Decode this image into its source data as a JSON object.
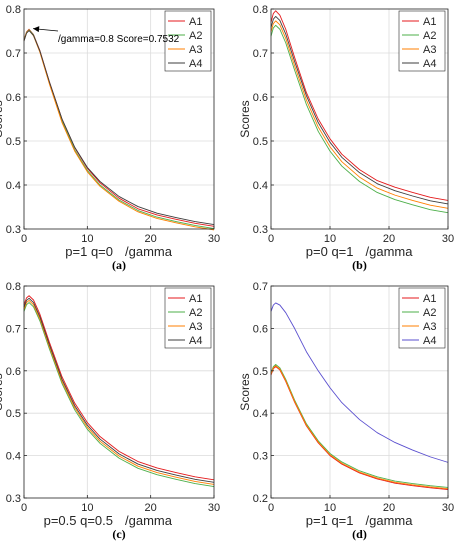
{
  "chart_data": [
    {
      "id": "a",
      "type": "line",
      "panel_label": "(a)",
      "ylabel": "Scores",
      "xlabel_left": "p=1 q=0",
      "xlabel_right": "/gamma",
      "xlim": [
        0,
        30
      ],
      "ylim": [
        0.3,
        0.8
      ],
      "xticks": [
        0,
        10,
        20,
        30
      ],
      "yticks": [
        0.3,
        0.4,
        0.5,
        0.6,
        0.7,
        0.8
      ],
      "annotation": {
        "text": "/gamma=0.8 Score=0.7532",
        "x": 0.8,
        "y": 0.7532
      },
      "series": [
        {
          "name": "A1",
          "color": "#e41a1c",
          "x": [
            0,
            0.4,
            0.8,
            1.5,
            2.5,
            4,
            6,
            8,
            10,
            12,
            15,
            18,
            21,
            24,
            27,
            30
          ],
          "y": [
            0.73,
            0.748,
            0.754,
            0.742,
            0.706,
            0.635,
            0.55,
            0.485,
            0.438,
            0.405,
            0.37,
            0.346,
            0.332,
            0.322,
            0.313,
            0.306
          ]
        },
        {
          "name": "A2",
          "color": "#4daf4a",
          "x": [
            0,
            0.4,
            0.8,
            1.5,
            2.5,
            4,
            6,
            8,
            10,
            12,
            15,
            18,
            21,
            24,
            27,
            30
          ],
          "y": [
            0.729,
            0.747,
            0.753,
            0.741,
            0.704,
            0.632,
            0.545,
            0.48,
            0.433,
            0.4,
            0.366,
            0.342,
            0.327,
            0.317,
            0.308,
            0.301
          ]
        },
        {
          "name": "A3",
          "color": "#ff7f00",
          "x": [
            0,
            0.4,
            0.8,
            1.5,
            2.5,
            4,
            6,
            8,
            10,
            12,
            15,
            18,
            21,
            24,
            27,
            30
          ],
          "y": [
            0.728,
            0.746,
            0.752,
            0.739,
            0.702,
            0.63,
            0.542,
            0.477,
            0.43,
            0.397,
            0.363,
            0.339,
            0.324,
            0.314,
            0.305,
            0.298
          ]
        },
        {
          "name": "A4",
          "color": "#3d3d3d",
          "x": [
            0,
            0.4,
            0.8,
            1.5,
            2.5,
            4,
            6,
            8,
            10,
            12,
            15,
            18,
            21,
            24,
            27,
            30
          ],
          "y": [
            0.727,
            0.745,
            0.751,
            0.74,
            0.705,
            0.635,
            0.55,
            0.486,
            0.44,
            0.408,
            0.374,
            0.351,
            0.336,
            0.326,
            0.317,
            0.31
          ]
        }
      ]
    },
    {
      "id": "b",
      "type": "line",
      "panel_label": "(b)",
      "ylabel": "Scores",
      "xlabel_left": "p=0 q=1",
      "xlabel_right": "/gamma",
      "xlim": [
        0,
        30
      ],
      "ylim": [
        0.3,
        0.8
      ],
      "xticks": [
        0,
        10,
        20,
        30
      ],
      "yticks": [
        0.3,
        0.4,
        0.5,
        0.6,
        0.7,
        0.8
      ],
      "series": [
        {
          "name": "A1",
          "color": "#e41a1c",
          "x": [
            0,
            0.4,
            0.8,
            1.5,
            2.5,
            4,
            6,
            8,
            10,
            12,
            15,
            18,
            21,
            24,
            27,
            30
          ],
          "y": [
            0.77,
            0.79,
            0.796,
            0.786,
            0.754,
            0.69,
            0.61,
            0.55,
            0.505,
            0.47,
            0.435,
            0.41,
            0.395,
            0.383,
            0.372,
            0.365
          ]
        },
        {
          "name": "A2",
          "color": "#4daf4a",
          "x": [
            0,
            0.4,
            0.8,
            1.5,
            2.5,
            4,
            6,
            8,
            10,
            12,
            15,
            18,
            21,
            24,
            27,
            30
          ],
          "y": [
            0.738,
            0.757,
            0.763,
            0.754,
            0.723,
            0.661,
            0.583,
            0.522,
            0.477,
            0.443,
            0.408,
            0.383,
            0.367,
            0.355,
            0.344,
            0.337
          ]
        },
        {
          "name": "A3",
          "color": "#ff7f00",
          "x": [
            0,
            0.4,
            0.8,
            1.5,
            2.5,
            4,
            6,
            8,
            10,
            12,
            15,
            18,
            21,
            24,
            27,
            30
          ],
          "y": [
            0.748,
            0.767,
            0.773,
            0.764,
            0.733,
            0.671,
            0.593,
            0.532,
            0.487,
            0.453,
            0.418,
            0.393,
            0.377,
            0.365,
            0.354,
            0.347
          ]
        },
        {
          "name": "A4",
          "color": "#3d3d3d",
          "x": [
            0,
            0.4,
            0.8,
            1.5,
            2.5,
            4,
            6,
            8,
            10,
            12,
            15,
            18,
            21,
            24,
            27,
            30
          ],
          "y": [
            0.758,
            0.777,
            0.783,
            0.774,
            0.743,
            0.681,
            0.603,
            0.542,
            0.497,
            0.463,
            0.428,
            0.403,
            0.387,
            0.375,
            0.364,
            0.357
          ]
        }
      ]
    },
    {
      "id": "c",
      "type": "line",
      "panel_label": "(c)",
      "ylabel": "Scores",
      "xlabel_left": "p=0.5 q=0.5",
      "xlabel_right": "/gamma",
      "xlim": [
        0,
        30
      ],
      "ylim": [
        0.3,
        0.8
      ],
      "xticks": [
        0,
        10,
        20,
        30
      ],
      "yticks": [
        0.3,
        0.4,
        0.5,
        0.6,
        0.7,
        0.8
      ],
      "series": [
        {
          "name": "A1",
          "color": "#e41a1c",
          "x": [
            0,
            0.4,
            0.8,
            1.5,
            2.5,
            4,
            6,
            8,
            10,
            12,
            15,
            18,
            21,
            24,
            27,
            30
          ],
          "y": [
            0.756,
            0.772,
            0.777,
            0.767,
            0.734,
            0.668,
            0.586,
            0.524,
            0.478,
            0.445,
            0.41,
            0.386,
            0.371,
            0.36,
            0.35,
            0.343
          ]
        },
        {
          "name": "A2",
          "color": "#4daf4a",
          "x": [
            0,
            0.4,
            0.8,
            1.5,
            2.5,
            4,
            6,
            8,
            10,
            12,
            15,
            18,
            21,
            24,
            27,
            30
          ],
          "y": [
            0.74,
            0.756,
            0.761,
            0.751,
            0.718,
            0.652,
            0.57,
            0.508,
            0.462,
            0.429,
            0.394,
            0.37,
            0.355,
            0.344,
            0.334,
            0.327
          ]
        },
        {
          "name": "A3",
          "color": "#ff7f00",
          "x": [
            0,
            0.4,
            0.8,
            1.5,
            2.5,
            4,
            6,
            8,
            10,
            12,
            15,
            18,
            21,
            24,
            27,
            30
          ],
          "y": [
            0.745,
            0.761,
            0.766,
            0.756,
            0.723,
            0.657,
            0.575,
            0.513,
            0.467,
            0.434,
            0.399,
            0.375,
            0.36,
            0.349,
            0.339,
            0.332
          ]
        },
        {
          "name": "A4",
          "color": "#3d3d3d",
          "x": [
            0,
            0.4,
            0.8,
            1.5,
            2.5,
            4,
            6,
            8,
            10,
            12,
            15,
            18,
            21,
            24,
            27,
            30
          ],
          "y": [
            0.75,
            0.766,
            0.771,
            0.761,
            0.728,
            0.662,
            0.58,
            0.518,
            0.472,
            0.439,
            0.404,
            0.38,
            0.365,
            0.354,
            0.344,
            0.337
          ]
        }
      ]
    },
    {
      "id": "d",
      "type": "line",
      "panel_label": "(d)",
      "ylabel": "Scores",
      "xlabel_left": "p=1 q=1",
      "xlabel_right": "/gamma",
      "xlim": [
        0,
        30
      ],
      "ylim": [
        0.2,
        0.7
      ],
      "xticks": [
        0,
        10,
        20,
        30
      ],
      "yticks": [
        0.2,
        0.3,
        0.4,
        0.5,
        0.6,
        0.7
      ],
      "series": [
        {
          "name": "A1",
          "color": "#e41a1c",
          "x": [
            0,
            0.4,
            0.8,
            1.5,
            2.5,
            4,
            6,
            8,
            10,
            12,
            15,
            18,
            21,
            24,
            27,
            30
          ],
          "y": [
            0.49,
            0.505,
            0.51,
            0.502,
            0.475,
            0.426,
            0.37,
            0.33,
            0.3,
            0.28,
            0.259,
            0.245,
            0.235,
            0.229,
            0.224,
            0.22
          ]
        },
        {
          "name": "A2",
          "color": "#4daf4a",
          "x": [
            0,
            0.4,
            0.8,
            1.5,
            2.5,
            4,
            6,
            8,
            10,
            12,
            15,
            18,
            21,
            24,
            27,
            30
          ],
          "y": [
            0.495,
            0.51,
            0.515,
            0.507,
            0.48,
            0.431,
            0.375,
            0.335,
            0.305,
            0.285,
            0.264,
            0.25,
            0.24,
            0.234,
            0.229,
            0.225
          ]
        },
        {
          "name": "A3",
          "color": "#ff7f00",
          "x": [
            0,
            0.4,
            0.8,
            1.5,
            2.5,
            4,
            6,
            8,
            10,
            12,
            15,
            18,
            21,
            24,
            27,
            30
          ],
          "y": [
            0.492,
            0.507,
            0.512,
            0.504,
            0.477,
            0.428,
            0.372,
            0.332,
            0.302,
            0.282,
            0.261,
            0.247,
            0.237,
            0.231,
            0.226,
            0.222
          ]
        },
        {
          "name": "A4",
          "color": "#5a4fcf",
          "x": [
            0,
            0.4,
            0.8,
            1.5,
            2.5,
            4,
            6,
            8,
            10,
            12,
            15,
            18,
            21,
            24,
            27,
            30
          ],
          "y": [
            0.64,
            0.655,
            0.66,
            0.655,
            0.637,
            0.6,
            0.545,
            0.5,
            0.46,
            0.425,
            0.385,
            0.354,
            0.331,
            0.313,
            0.297,
            0.284
          ]
        }
      ]
    }
  ]
}
